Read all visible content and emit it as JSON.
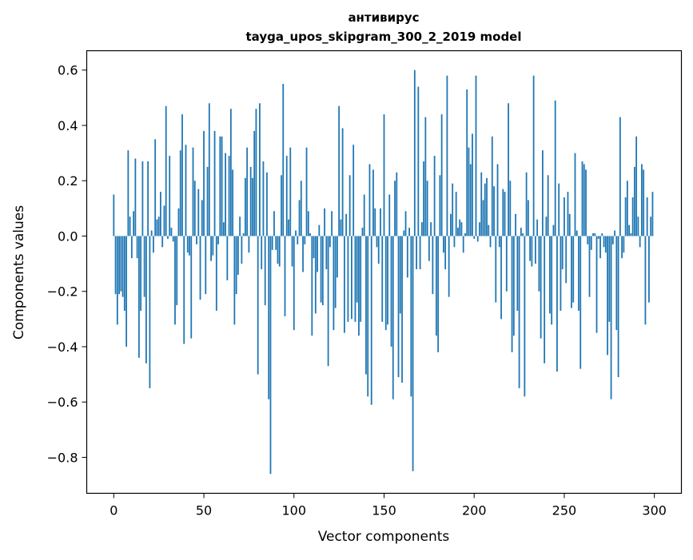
{
  "chart_data": {
    "type": "bar",
    "title": "антивирус",
    "subtitle": "tayga_upos_skipgram_300_2_2019 model",
    "xlabel": "Vector components",
    "ylabel": "Components values",
    "xlim": [
      -15,
      315
    ],
    "ylim": [
      -0.93,
      0.67
    ],
    "xticks": [
      0,
      50,
      100,
      150,
      200,
      250,
      300
    ],
    "xtick_labels": [
      "0",
      "50",
      "100",
      "150",
      "200",
      "250",
      "300"
    ],
    "yticks": [
      0.6,
      0.4,
      0.2,
      0.0,
      -0.2,
      -0.4,
      -0.6,
      -0.8
    ],
    "ytick_labels": [
      "0.6",
      "0.4",
      "0.2",
      "0.0",
      "−0.2",
      "−0.4",
      "−0.6",
      "−0.8"
    ],
    "bar_color": "#1f77b4",
    "grid": false,
    "x": "0..299",
    "values": [
      0.15,
      -0.21,
      -0.32,
      -0.21,
      -0.2,
      -0.22,
      -0.27,
      -0.4,
      0.31,
      0.07,
      -0.08,
      0.09,
      0.28,
      -0.08,
      -0.44,
      -0.27,
      0.27,
      -0.22,
      -0.46,
      0.27,
      -0.55,
      0.02,
      -0.06,
      0.35,
      0.06,
      0.07,
      0.16,
      -0.04,
      0.11,
      0.47,
      -0.01,
      0.29,
      0.03,
      -0.02,
      -0.32,
      -0.25,
      0.1,
      0.31,
      0.44,
      -0.39,
      0.33,
      -0.06,
      -0.07,
      -0.37,
      0.32,
      0.2,
      -0.03,
      0.17,
      -0.23,
      0.13,
      0.38,
      -0.21,
      0.25,
      0.48,
      -0.09,
      -0.07,
      0.38,
      -0.27,
      -0.03,
      0.36,
      0.36,
      0.05,
      0.3,
      -0.16,
      0.29,
      0.46,
      0.24,
      -0.32,
      -0.21,
      -0.14,
      0.07,
      -0.1,
      0.01,
      0.21,
      0.32,
      -0.06,
      0.25,
      0.21,
      0.38,
      0.46,
      -0.5,
      0.48,
      -0.12,
      0.27,
      -0.25,
      0.23,
      -0.59,
      -0.86,
      -0.05,
      0.09,
      -0.05,
      -0.1,
      -0.11,
      0.22,
      0.55,
      -0.29,
      0.29,
      0.06,
      0.32,
      -0.11,
      -0.34,
      0.02,
      -0.03,
      0.13,
      0.2,
      -0.13,
      -0.03,
      0.32,
      0.09,
      0.01,
      -0.36,
      -0.08,
      -0.28,
      -0.13,
      0.04,
      -0.24,
      -0.25,
      0.1,
      -0.12,
      -0.47,
      -0.04,
      0.09,
      -0.34,
      -0.26,
      -0.15,
      0.47,
      0.06,
      0.39,
      -0.35,
      0.08,
      -0.31,
      0.22,
      -0.3,
      0.33,
      -0.31,
      -0.24,
      -0.36,
      -0.31,
      0.03,
      0.15,
      -0.5,
      -0.58,
      0.26,
      -0.61,
      0.24,
      0.1,
      -0.04,
      -0.1,
      0.1,
      -0.31,
      0.44,
      -0.34,
      -0.32,
      0.15,
      -0.4,
      -0.59,
      0.2,
      0.23,
      -0.51,
      -0.28,
      -0.53,
      0.02,
      0.09,
      -0.15,
      0.03,
      -0.58,
      -0.85,
      0.6,
      -0.12,
      0.54,
      -0.12,
      0.05,
      0.27,
      0.43,
      0.2,
      -0.09,
      0.05,
      -0.21,
      0.29,
      -0.36,
      -0.42,
      0.22,
      0.44,
      -0.06,
      -0.12,
      0.58,
      -0.22,
      0.08,
      0.19,
      -0.04,
      0.16,
      0.03,
      0.06,
      0.05,
      -0.06,
      0.01,
      0.53,
      0.32,
      0.26,
      0.37,
      -0.01,
      0.58,
      -0.02,
      0.05,
      0.23,
      0.13,
      0.19,
      0.21,
      0.04,
      -0.04,
      0.36,
      0.18,
      -0.24,
      0.26,
      -0.04,
      -0.3,
      0.17,
      0.16,
      -0.2,
      0.48,
      0.2,
      -0.42,
      -0.36,
      0.08,
      -0.27,
      -0.55,
      0.03,
      0.01,
      -0.58,
      0.23,
      0.13,
      -0.09,
      -0.11,
      0.58,
      -0.1,
      0.06,
      -0.2,
      -0.37,
      0.31,
      -0.46,
      0.07,
      0.22,
      -0.28,
      -0.32,
      0.04,
      0.49,
      -0.49,
      0.19,
      -0.27,
      -0.12,
      0.14,
      -0.17,
      0.16,
      0.08,
      -0.26,
      -0.24,
      0.3,
      0.02,
      -0.27,
      -0.48,
      0.27,
      0.26,
      0.24,
      -0.03,
      -0.22,
      -0.05,
      0.01,
      0.01,
      -0.35,
      -0.01,
      -0.08,
      0.01,
      -0.04,
      -0.06,
      -0.43,
      -0.31,
      -0.59,
      -0.03,
      0.02,
      -0.34,
      -0.51,
      0.43,
      -0.08,
      -0.06,
      0.14,
      0.2,
      0.04,
      0.01,
      0.14,
      0.25,
      0.36,
      0.07,
      -0.04,
      0.26,
      0.24,
      -0.32,
      0.14,
      -0.24,
      0.07,
      0.16
    ]
  }
}
